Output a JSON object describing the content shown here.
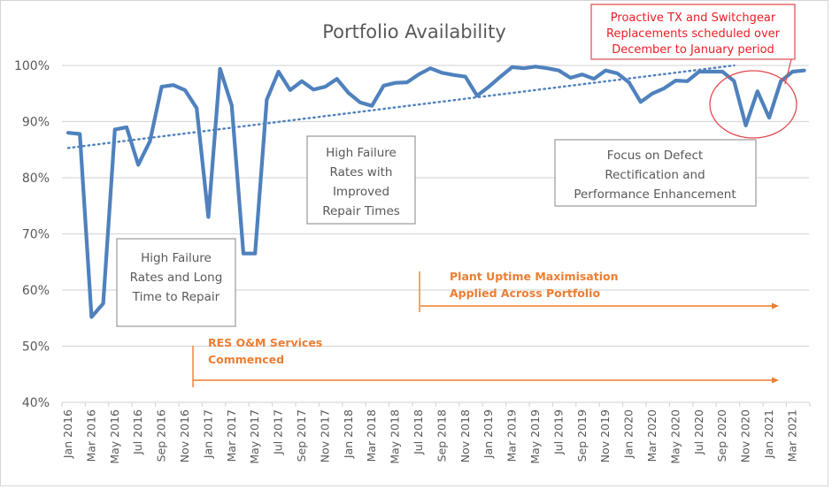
{
  "chart_data": {
    "type": "line",
    "title": "Portfolio Availability",
    "xlabel": "",
    "ylabel": "",
    "ylim": [
      40,
      100
    ],
    "y_ticks": [
      "40%",
      "50%",
      "60%",
      "70%",
      "80%",
      "90%",
      "100%"
    ],
    "y_tick_values": [
      40,
      50,
      60,
      70,
      80,
      90,
      100
    ],
    "grid": true,
    "x": [
      "Jan 2016",
      "Feb 2016",
      "Mar 2016",
      "Apr 2016",
      "May 2016",
      "Jun 2016",
      "Jul 2016",
      "Aug 2016",
      "Sep 2016",
      "Oct 2016",
      "Nov 2016",
      "Dec 2016",
      "Jan 2017",
      "Feb 2017",
      "Mar 2017",
      "Apr 2017",
      "May 2017",
      "Jun 2017",
      "Jul 2017",
      "Aug 2017",
      "Sep 2017",
      "Oct 2017",
      "Nov 2017",
      "Dec 2017",
      "Jan 2018",
      "Feb 2018",
      "Mar 2018",
      "Apr 2018",
      "May 2018",
      "Jun 2018",
      "Jul 2018",
      "Aug 2018",
      "Sep 2018",
      "Oct 2018",
      "Nov 2018",
      "Dec 2018",
      "Jan 2019",
      "Feb 2019",
      "Mar 2019",
      "Apr 2019",
      "May 2019",
      "Jun 2019",
      "Jul 2019",
      "Aug 2019",
      "Sep 2019",
      "Oct 2019",
      "Nov 2019",
      "Dec 2019",
      "Jan 2020",
      "Feb 2020",
      "Mar 2020",
      "Apr 2020",
      "May 2020",
      "Jun 2020",
      "Jul 2020",
      "Aug 2020",
      "Sep 2020",
      "Oct 2020",
      "Nov 2020",
      "Dec 2020",
      "Jan 2021",
      "Feb 2021",
      "Mar 2021",
      "Apr 2021"
    ],
    "x_tick_labels": [
      "Jan 2016",
      "Mar 2016",
      "May 2016",
      "Jul 2016",
      "Sep 2016",
      "Nov 2016",
      "Jan 2017",
      "Mar 2017",
      "May 2017",
      "Jul 2017",
      "Sep 2017",
      "Nov 2017",
      "Jan 2018",
      "Mar 2018",
      "May 2018",
      "Jul 2018",
      "Sep 2018",
      "Nov 2018",
      "Jan 2019",
      "Mar 2019",
      "May 2019",
      "Jul 2019",
      "Sep 2019",
      "Nov 2019",
      "Jan 2020",
      "Mar 2020",
      "May 2020",
      "Jul 2020",
      "Sep 2020",
      "Nov 2020",
      "Jan 2021",
      "Mar 2021"
    ],
    "series": [
      {
        "name": "Portfolio Availability",
        "color": "#4f81bd",
        "values": [
          88.0,
          87.8,
          55.2,
          57.6,
          88.6,
          89.0,
          82.3,
          86.5,
          96.2,
          96.5,
          95.6,
          92.4,
          73.0,
          99.4,
          92.9,
          66.5,
          66.5,
          93.9,
          98.9,
          95.6,
          97.2,
          95.7,
          96.2,
          97.6,
          95.1,
          93.4,
          92.8,
          96.4,
          96.9,
          97.0,
          98.4,
          99.5,
          98.7,
          98.3,
          98.0,
          94.6,
          96.2,
          98.0,
          99.7,
          99.5,
          99.8,
          99.5,
          99.1,
          97.8,
          98.4,
          97.6,
          99.1,
          98.6,
          97.0,
          93.5,
          95.0,
          95.9,
          97.3,
          97.2,
          98.9,
          98.9,
          98.9,
          97.2,
          89.3,
          95.4,
          90.7,
          97.2,
          98.9,
          99.1
        ]
      }
    ],
    "trendline": {
      "name": "Linear trend",
      "style": "dotted",
      "color": "#4f81bd",
      "start": {
        "x": "Jan 2016",
        "y": 85.3
      },
      "end": {
        "x": "Oct 2020",
        "y": 100.0
      }
    },
    "annotations": {
      "box1": {
        "lines": [
          "High Failure",
          "Rates and Long",
          "Time to Repair"
        ]
      },
      "box2": {
        "lines": [
          "High Failure",
          "Rates with",
          "Improved",
          "Repair Times"
        ]
      },
      "box3": {
        "lines": [
          "Focus on Defect",
          "Rectification and",
          "Performance Enhancement"
        ]
      },
      "callout": {
        "lines": [
          "Proactive TX and Switchgear",
          "Replacements scheduled over",
          "December to January period"
        ],
        "color": "#ee1c25"
      },
      "arrow1": {
        "lines": [
          "RES O&M Services",
          "Commenced"
        ],
        "start": "Dec 2016",
        "color": "#ed7d31"
      },
      "arrow2": {
        "lines": [
          "Plant Uptime Maximisation",
          "Applied Across Portfolio"
        ],
        "start": "Jul 2018",
        "color": "#ed7d31"
      }
    }
  }
}
